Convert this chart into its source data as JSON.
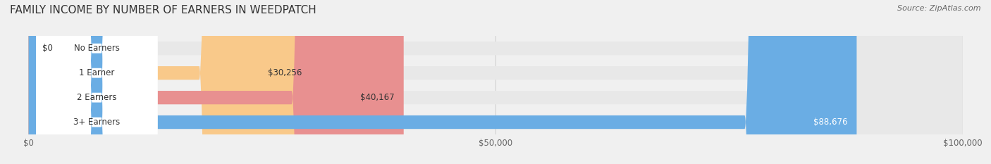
{
  "title": "FAMILY INCOME BY NUMBER OF EARNERS IN WEEDPATCH",
  "source": "Source: ZipAtlas.com",
  "categories": [
    "No Earners",
    "1 Earner",
    "2 Earners",
    "3+ Earners"
  ],
  "values": [
    0,
    30256,
    40167,
    88676
  ],
  "bar_colors": [
    "#f799b0",
    "#f9c98a",
    "#e89090",
    "#6aade4"
  ],
  "label_colors": [
    "#333333",
    "#333333",
    "#333333",
    "#ffffff"
  ],
  "value_labels": [
    "$0",
    "$30,256",
    "$40,167",
    "$88,676"
  ],
  "xlim": [
    0,
    100000
  ],
  "xticks": [
    0,
    50000,
    100000
  ],
  "xtick_labels": [
    "$0",
    "$50,000",
    "$100,000"
  ],
  "background_color": "#f0f0f0",
  "bar_bg_color": "#e8e8e8",
  "title_fontsize": 11,
  "bar_height": 0.55,
  "fig_width": 14.06,
  "fig_height": 2.33
}
